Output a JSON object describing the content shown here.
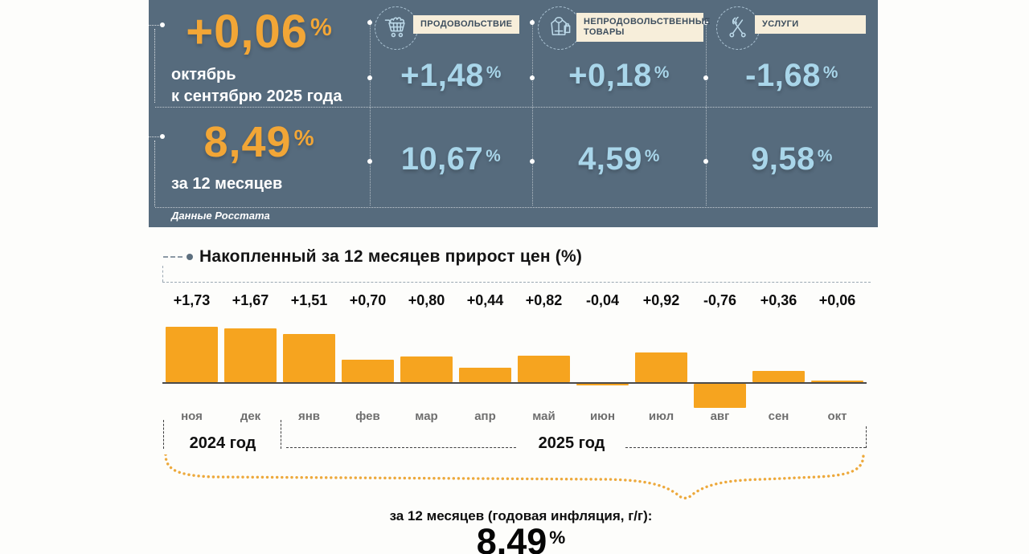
{
  "theme": {
    "panel_bg": "#566B7D",
    "orange": "#F2A636",
    "bar_orange": "#F6A41F",
    "light_blue": "#A9D6EA",
    "label_bg": "#F7EEDA",
    "label_text": "#3D4E5E"
  },
  "panel": {
    "period": {
      "value": "+0,06",
      "unit": "%",
      "caption_line1": "октябрь",
      "caption_line2": "к сентябрю 2025 года"
    },
    "annual": {
      "value": "8,49",
      "unit": "%",
      "caption": "за 12 месяцев"
    },
    "source": "Данные Росстата",
    "categories": [
      {
        "label": "ПРОДОВОЛЬСТВИЕ",
        "icon": "shopping-cart-icon",
        "month_value": "+1,48",
        "annual_value": "10,67",
        "unit": "%"
      },
      {
        "label": "НЕПРОДОВОЛЬСТВЕННЫЕ ТОВАРЫ",
        "icon": "clothing-icon",
        "month_value": "+0,18",
        "annual_value": "4,59",
        "unit": "%"
      },
      {
        "label": "УСЛУГИ",
        "icon": "services-scissors-icon",
        "month_value": "-1,68",
        "annual_value": "9,58",
        "unit": "%"
      }
    ]
  },
  "chart_data": {
    "type": "bar",
    "title": "Накопленный за 12 месяцев прирост цен (%)",
    "categories": [
      "ноя",
      "дек",
      "янв",
      "фев",
      "мар",
      "апр",
      "май",
      "июн",
      "июл",
      "авг",
      "сен",
      "окт"
    ],
    "values": [
      1.73,
      1.67,
      1.51,
      0.7,
      0.8,
      0.44,
      0.82,
      -0.04,
      0.92,
      -0.76,
      0.36,
      0.06
    ],
    "value_labels": [
      "+1,73",
      "+1,67",
      "+1,51",
      "+0,70",
      "+0,80",
      "+0,44",
      "+0,82",
      "-0,04",
      "+0,92",
      "-0,76",
      "+0,36",
      "+0,06"
    ],
    "bar_color": "#F6A41F",
    "baseline": 0,
    "ylim": [
      -0.9,
      1.9
    ],
    "grid": false,
    "legend": false,
    "year_groups": [
      {
        "label": "2024 год",
        "months": [
          "ноя",
          "дек"
        ]
      },
      {
        "label": "2025 год",
        "months": [
          "янв",
          "фев",
          "мар",
          "апр",
          "май",
          "июн",
          "июл",
          "авг",
          "сен",
          "окт"
        ]
      }
    ]
  },
  "summary": {
    "caption": "за 12 месяцев (годовая инфляция, г/г):",
    "value": "8.49",
    "unit": "%"
  }
}
